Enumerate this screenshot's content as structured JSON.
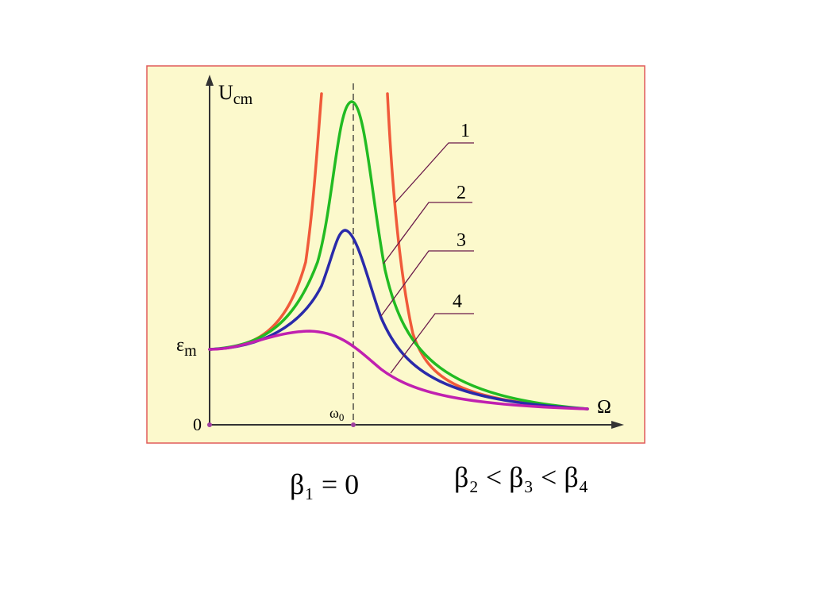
{
  "axes": {
    "y_label": {
      "main": "U",
      "sub": "cm"
    },
    "y_mark": {
      "main": "ε",
      "sub": "m"
    },
    "origin": "0",
    "x_mark": {
      "main": "ω",
      "sub": "0"
    },
    "x_label": "Ω"
  },
  "curve_labels": [
    "1",
    "2",
    "3",
    "4"
  ],
  "conditions": [
    "β₁ = 0",
    "β₂ < β₃ < β₄"
  ]
}
